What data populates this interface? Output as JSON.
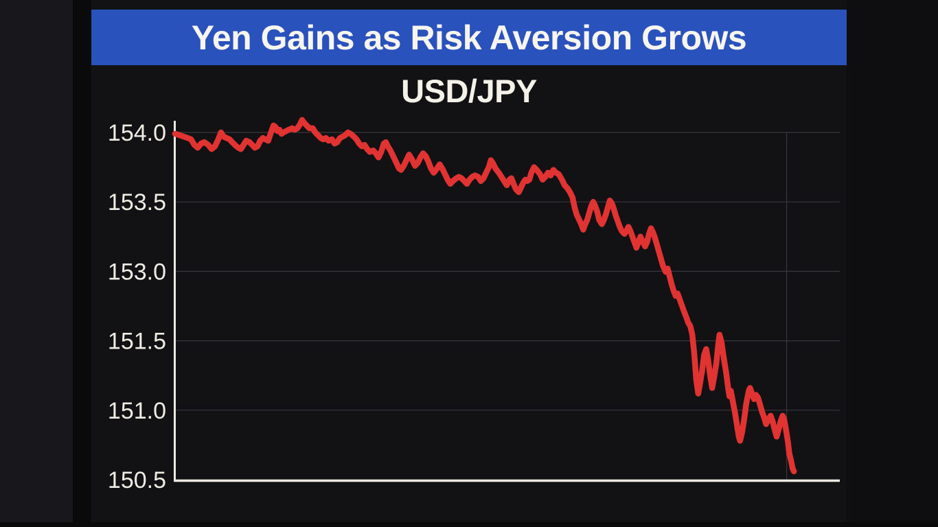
{
  "banner": {
    "title": "Yen Gains as Risk Aversion Grows",
    "bg_color": "#2a52bd",
    "text_color": "#f7f5ee"
  },
  "chart": {
    "subtitle": "USD/JPY",
    "subtitle_color": "#f3f1e8",
    "line_color": "#e23333",
    "axis_color": "#ebe9e1",
    "grid_color": "#38383c",
    "tick_label_color": "#eeece3",
    "y_ticks": [
      {
        "label": "154.0",
        "value": 154.0
      },
      {
        "label": "153.5",
        "value": 153.5
      },
      {
        "label": "153.0",
        "value": 153.0
      },
      {
        "label": "151.5",
        "value": 151.5
      },
      {
        "label": "151.0",
        "value": 151.0
      },
      {
        "label": "150.5",
        "value": 150.5
      }
    ],
    "x_gridline_fracs": [
      0.92
    ]
  },
  "chart_data": {
    "type": "line",
    "title": "USD/JPY",
    "banner_headline": "Yen Gains as Risk Aversion Grows",
    "xlabel": "",
    "ylabel": "",
    "x_axis": {
      "tick_labels": [],
      "note": "no x-axis labels shown"
    },
    "y_axis": {
      "tick_labels": [
        "154.0",
        "153.5",
        "153.0",
        "151.5",
        "151.0",
        "150.5"
      ],
      "note": "ticks evenly spaced in pixels but non-uniform in value (0.5,0.5,1.5,0.5,0.5 steps); grid on",
      "visual_range": [
        150.5,
        154.1
      ]
    },
    "legend": "none",
    "series": [
      {
        "name": "USD/JPY",
        "points": [
          [
            0.0,
            153.99
          ],
          [
            0.007,
            153.98
          ],
          [
            0.013,
            153.97
          ],
          [
            0.019,
            153.96
          ],
          [
            0.024,
            153.95
          ],
          [
            0.029,
            153.91
          ],
          [
            0.034,
            153.89
          ],
          [
            0.039,
            153.92
          ],
          [
            0.044,
            153.93
          ],
          [
            0.05,
            153.91
          ],
          [
            0.055,
            153.88
          ],
          [
            0.06,
            153.9
          ],
          [
            0.065,
            153.95
          ],
          [
            0.069,
            154.0
          ],
          [
            0.073,
            153.97
          ],
          [
            0.082,
            153.95
          ],
          [
            0.086,
            153.93
          ],
          [
            0.09,
            153.91
          ],
          [
            0.095,
            153.89
          ],
          [
            0.099,
            153.88
          ],
          [
            0.103,
            153.91
          ],
          [
            0.107,
            153.94
          ],
          [
            0.112,
            153.93
          ],
          [
            0.116,
            153.91
          ],
          [
            0.12,
            153.89
          ],
          [
            0.124,
            153.9
          ],
          [
            0.128,
            153.94
          ],
          [
            0.132,
            153.96
          ],
          [
            0.136,
            153.95
          ],
          [
            0.14,
            153.94
          ],
          [
            0.145,
            154.01
          ],
          [
            0.148,
            154.05
          ],
          [
            0.151,
            154.04
          ],
          [
            0.154,
            154.01
          ],
          [
            0.157,
            154.02
          ],
          [
            0.16,
            153.99
          ],
          [
            0.163,
            154.0
          ],
          [
            0.167,
            154.01
          ],
          [
            0.171,
            154.02
          ],
          [
            0.176,
            154.03
          ],
          [
            0.18,
            154.02
          ],
          [
            0.184,
            154.03
          ],
          [
            0.188,
            154.06
          ],
          [
            0.191,
            154.09
          ],
          [
            0.194,
            154.07
          ],
          [
            0.198,
            154.05
          ],
          [
            0.202,
            154.03
          ],
          [
            0.207,
            154.03
          ],
          [
            0.211,
            154.0
          ],
          [
            0.215,
            153.98
          ],
          [
            0.219,
            153.96
          ],
          [
            0.223,
            153.95
          ],
          [
            0.227,
            153.96
          ],
          [
            0.231,
            153.94
          ],
          [
            0.236,
            153.95
          ],
          [
            0.24,
            153.92
          ],
          [
            0.244,
            153.93
          ],
          [
            0.248,
            153.96
          ],
          [
            0.252,
            153.97
          ],
          [
            0.256,
            153.98
          ],
          [
            0.26,
            154.0
          ],
          [
            0.264,
            153.99
          ],
          [
            0.269,
            153.97
          ],
          [
            0.273,
            153.95
          ],
          [
            0.277,
            153.92
          ],
          [
            0.281,
            153.9
          ],
          [
            0.285,
            153.91
          ],
          [
            0.289,
            153.88
          ],
          [
            0.293,
            153.86
          ],
          [
            0.298,
            153.87
          ],
          [
            0.302,
            153.85
          ],
          [
            0.306,
            153.82
          ],
          [
            0.31,
            153.86
          ],
          [
            0.314,
            153.92
          ],
          [
            0.317,
            153.93
          ],
          [
            0.32,
            153.9
          ],
          [
            0.324,
            153.87
          ],
          [
            0.328,
            153.83
          ],
          [
            0.333,
            153.78
          ],
          [
            0.337,
            153.74
          ],
          [
            0.34,
            153.73
          ],
          [
            0.344,
            153.76
          ],
          [
            0.348,
            153.8
          ],
          [
            0.352,
            153.84
          ],
          [
            0.356,
            153.81
          ],
          [
            0.361,
            153.76
          ],
          [
            0.365,
            153.78
          ],
          [
            0.369,
            153.82
          ],
          [
            0.373,
            153.85
          ],
          [
            0.377,
            153.83
          ],
          [
            0.381,
            153.79
          ],
          [
            0.385,
            153.74
          ],
          [
            0.389,
            153.71
          ],
          [
            0.394,
            153.74
          ],
          [
            0.398,
            153.77
          ],
          [
            0.402,
            153.74
          ],
          [
            0.406,
            153.7
          ],
          [
            0.41,
            153.66
          ],
          [
            0.414,
            153.63
          ],
          [
            0.418,
            153.65
          ],
          [
            0.423,
            153.67
          ],
          [
            0.427,
            153.68
          ],
          [
            0.431,
            153.67
          ],
          [
            0.435,
            153.65
          ],
          [
            0.439,
            153.63
          ],
          [
            0.443,
            153.66
          ],
          [
            0.447,
            153.68
          ],
          [
            0.451,
            153.69
          ],
          [
            0.456,
            153.68
          ],
          [
            0.46,
            153.65
          ],
          [
            0.464,
            153.67
          ],
          [
            0.468,
            153.71
          ],
          [
            0.472,
            153.75
          ],
          [
            0.475,
            153.8
          ],
          [
            0.478,
            153.78
          ],
          [
            0.482,
            153.74
          ],
          [
            0.487,
            153.71
          ],
          [
            0.491,
            153.68
          ],
          [
            0.495,
            153.65
          ],
          [
            0.499,
            153.62
          ],
          [
            0.503,
            153.66
          ],
          [
            0.506,
            153.67
          ],
          [
            0.51,
            153.62
          ],
          [
            0.513,
            153.59
          ],
          [
            0.517,
            153.57
          ],
          [
            0.52,
            153.6
          ],
          [
            0.524,
            153.64
          ],
          [
            0.527,
            153.66
          ],
          [
            0.53,
            153.65
          ],
          [
            0.533,
            153.66
          ],
          [
            0.536,
            153.71
          ],
          [
            0.54,
            153.75
          ],
          [
            0.544,
            153.73
          ],
          [
            0.549,
            153.7
          ],
          [
            0.553,
            153.66
          ],
          [
            0.557,
            153.68
          ],
          [
            0.561,
            153.71
          ],
          [
            0.565,
            153.69
          ],
          [
            0.569,
            153.73
          ],
          [
            0.573,
            153.71
          ],
          [
            0.577,
            153.7
          ],
          [
            0.582,
            153.66
          ],
          [
            0.586,
            153.62
          ],
          [
            0.59,
            153.6
          ],
          [
            0.594,
            153.57
          ],
          [
            0.598,
            153.53
          ],
          [
            0.601,
            153.46
          ],
          [
            0.604,
            153.41
          ],
          [
            0.607,
            153.38
          ],
          [
            0.611,
            153.34
          ],
          [
            0.614,
            153.3
          ],
          [
            0.617,
            153.34
          ],
          [
            0.62,
            153.37
          ],
          [
            0.623,
            153.42
          ],
          [
            0.626,
            153.47
          ],
          [
            0.629,
            153.5
          ],
          [
            0.632,
            153.47
          ],
          [
            0.635,
            153.43
          ],
          [
            0.638,
            153.37
          ],
          [
            0.642,
            153.34
          ],
          [
            0.645,
            153.37
          ],
          [
            0.648,
            153.41
          ],
          [
            0.651,
            153.46
          ],
          [
            0.654,
            153.51
          ],
          [
            0.657,
            153.49
          ],
          [
            0.66,
            153.45
          ],
          [
            0.663,
            153.4
          ],
          [
            0.666,
            153.36
          ],
          [
            0.669,
            153.32
          ],
          [
            0.672,
            153.29
          ],
          [
            0.676,
            153.27
          ],
          [
            0.679,
            153.29
          ],
          [
            0.682,
            153.32
          ],
          [
            0.685,
            153.29
          ],
          [
            0.688,
            153.25
          ],
          [
            0.691,
            153.21
          ],
          [
            0.694,
            153.17
          ],
          [
            0.697,
            153.21
          ],
          [
            0.7,
            153.25
          ],
          [
            0.703,
            153.22
          ],
          [
            0.707,
            153.18
          ],
          [
            0.71,
            153.21
          ],
          [
            0.713,
            153.27
          ],
          [
            0.716,
            153.31
          ],
          [
            0.719,
            153.28
          ],
          [
            0.722,
            153.24
          ],
          [
            0.725,
            153.19
          ],
          [
            0.728,
            153.14
          ],
          [
            0.731,
            153.09
          ],
          [
            0.734,
            153.04
          ],
          [
            0.738,
            152.99
          ],
          [
            0.741,
            153.02
          ],
          [
            0.744,
            152.89
          ],
          [
            0.747,
            152.72
          ],
          [
            0.75,
            152.58
          ],
          [
            0.753,
            152.47
          ],
          [
            0.756,
            152.52
          ],
          [
            0.759,
            152.4
          ],
          [
            0.762,
            152.28
          ],
          [
            0.765,
            152.16
          ],
          [
            0.769,
            152.01
          ],
          [
            0.772,
            151.89
          ],
          [
            0.775,
            151.82
          ],
          [
            0.778,
            151.64
          ],
          [
            0.781,
            151.41
          ],
          [
            0.784,
            151.22
          ],
          [
            0.787,
            151.12
          ],
          [
            0.79,
            151.2
          ],
          [
            0.793,
            151.29
          ],
          [
            0.796,
            151.4
          ],
          [
            0.799,
            151.44
          ],
          [
            0.802,
            151.36
          ],
          [
            0.805,
            151.25
          ],
          [
            0.808,
            151.16
          ],
          [
            0.811,
            151.24
          ],
          [
            0.814,
            151.33
          ],
          [
            0.817,
            151.47
          ],
          [
            0.819,
            151.63
          ],
          [
            0.822,
            151.49
          ],
          [
            0.825,
            151.39
          ],
          [
            0.829,
            151.27
          ],
          [
            0.832,
            151.16
          ],
          [
            0.834,
            151.1
          ],
          [
            0.836,
            151.14
          ],
          [
            0.838,
            151.09
          ],
          [
            0.84,
            151.04
          ],
          [
            0.842,
            150.99
          ],
          [
            0.845,
            150.9
          ],
          [
            0.848,
            150.81
          ],
          [
            0.85,
            150.78
          ],
          [
            0.853,
            150.84
          ],
          [
            0.856,
            150.93
          ],
          [
            0.859,
            151.04
          ],
          [
            0.863,
            151.14
          ],
          [
            0.865,
            151.16
          ],
          [
            0.868,
            151.12
          ],
          [
            0.871,
            151.08
          ],
          [
            0.874,
            151.11
          ],
          [
            0.877,
            151.09
          ],
          [
            0.88,
            151.04
          ],
          [
            0.883,
            150.99
          ],
          [
            0.886,
            150.95
          ],
          [
            0.889,
            150.9
          ],
          [
            0.892,
            150.93
          ],
          [
            0.896,
            150.96
          ],
          [
            0.899,
            150.92
          ],
          [
            0.902,
            150.86
          ],
          [
            0.905,
            150.81
          ],
          [
            0.908,
            150.86
          ],
          [
            0.911,
            150.92
          ],
          [
            0.914,
            150.96
          ],
          [
            0.916,
            150.94
          ],
          [
            0.918,
            150.89
          ],
          [
            0.92,
            150.83
          ],
          [
            0.922,
            150.77
          ],
          [
            0.924,
            150.69
          ],
          [
            0.927,
            150.63
          ],
          [
            0.929,
            150.58
          ],
          [
            0.931,
            150.56
          ]
        ]
      }
    ]
  }
}
